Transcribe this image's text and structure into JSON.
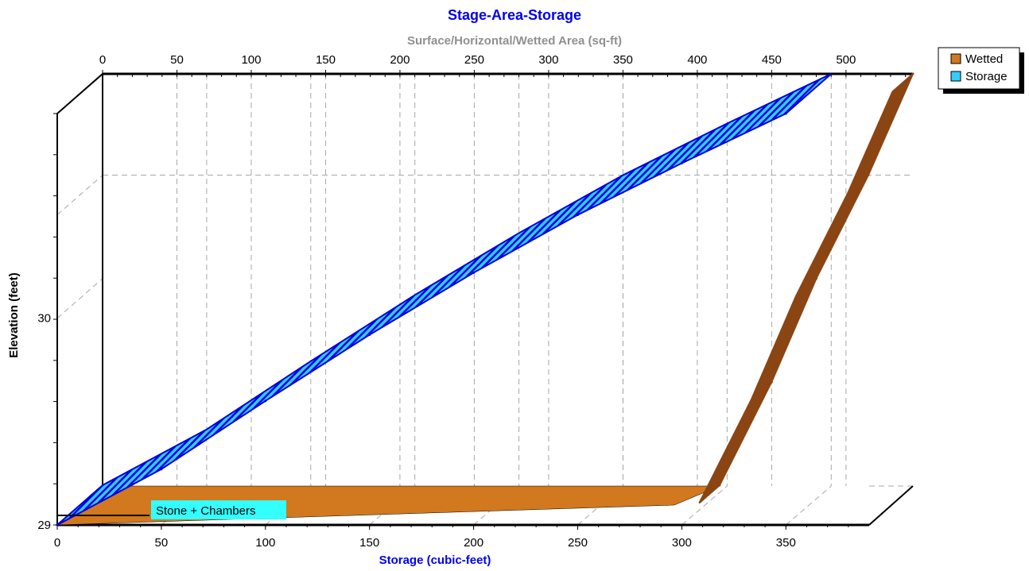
{
  "chart_data": {
    "type": "line",
    "title": "Stage-Area-Storage",
    "top_axis_label": "Surface/Horizontal/Wetted Area (sq-ft)",
    "xlabel": "Storage (cubic-feet)",
    "ylabel": "Elevation  (feet)",
    "top_ticks": [
      "0",
      "50",
      "100",
      "150",
      "200",
      "250",
      "300",
      "350",
      "400",
      "450",
      "500"
    ],
    "bottom_ticks": [
      "0",
      "50",
      "100",
      "150",
      "200",
      "250",
      "300",
      "350"
    ],
    "y_ticks": [
      "29",
      "30"
    ],
    "top_range": [
      0,
      545
    ],
    "bottom_range": [
      0,
      390
    ],
    "ylim": [
      29,
      30.99
    ],
    "annotation": "Stone + Chambers",
    "legend_position": "top-right",
    "series": [
      {
        "name": "Wetted",
        "axis": "top",
        "color": "#d2781e",
        "dark_color": "#8b4513",
        "points": [
          {
            "x": 0,
            "y": 29.0
          },
          {
            "x": 415,
            "y": 29.0
          },
          {
            "x": 450,
            "y": 29.5
          },
          {
            "x": 480,
            "y": 30.0
          },
          {
            "x": 515,
            "y": 30.5
          },
          {
            "x": 545,
            "y": 30.99
          }
        ]
      },
      {
        "name": "Storage",
        "axis": "bottom",
        "color": "#33ccff",
        "dark_color": "#0000dd",
        "points": [
          {
            "x": 0,
            "y": 29.0
          },
          {
            "x": 50,
            "y": 29.27
          },
          {
            "x": 100,
            "y": 29.6
          },
          {
            "x": 150,
            "y": 29.92
          },
          {
            "x": 200,
            "y": 30.22
          },
          {
            "x": 250,
            "y": 30.5
          },
          {
            "x": 300,
            "y": 30.75
          },
          {
            "x": 350,
            "y": 30.99
          }
        ]
      }
    ]
  }
}
